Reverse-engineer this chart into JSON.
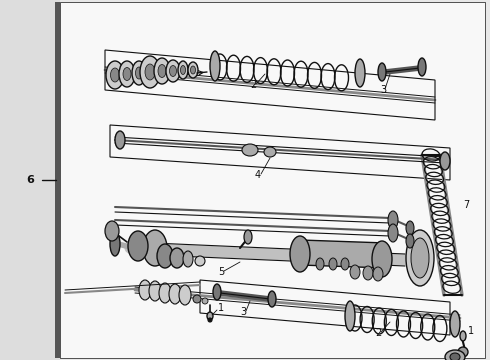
{
  "bg_color": "#e8e8e8",
  "content_bg": "#f5f5f5",
  "line_color": "#111111",
  "gray": "#777777",
  "dark_gray": "#444444",
  "mid_gray": "#999999",
  "light_gray": "#cccccc",
  "figsize": [
    4.9,
    3.6
  ],
  "dpi": 100,
  "left_bar_color": "#555555",
  "label_6": "6",
  "label_7": "7",
  "label_1": "1",
  "label_2": "2",
  "label_3": "3",
  "label_4": "4",
  "label_5": "5"
}
